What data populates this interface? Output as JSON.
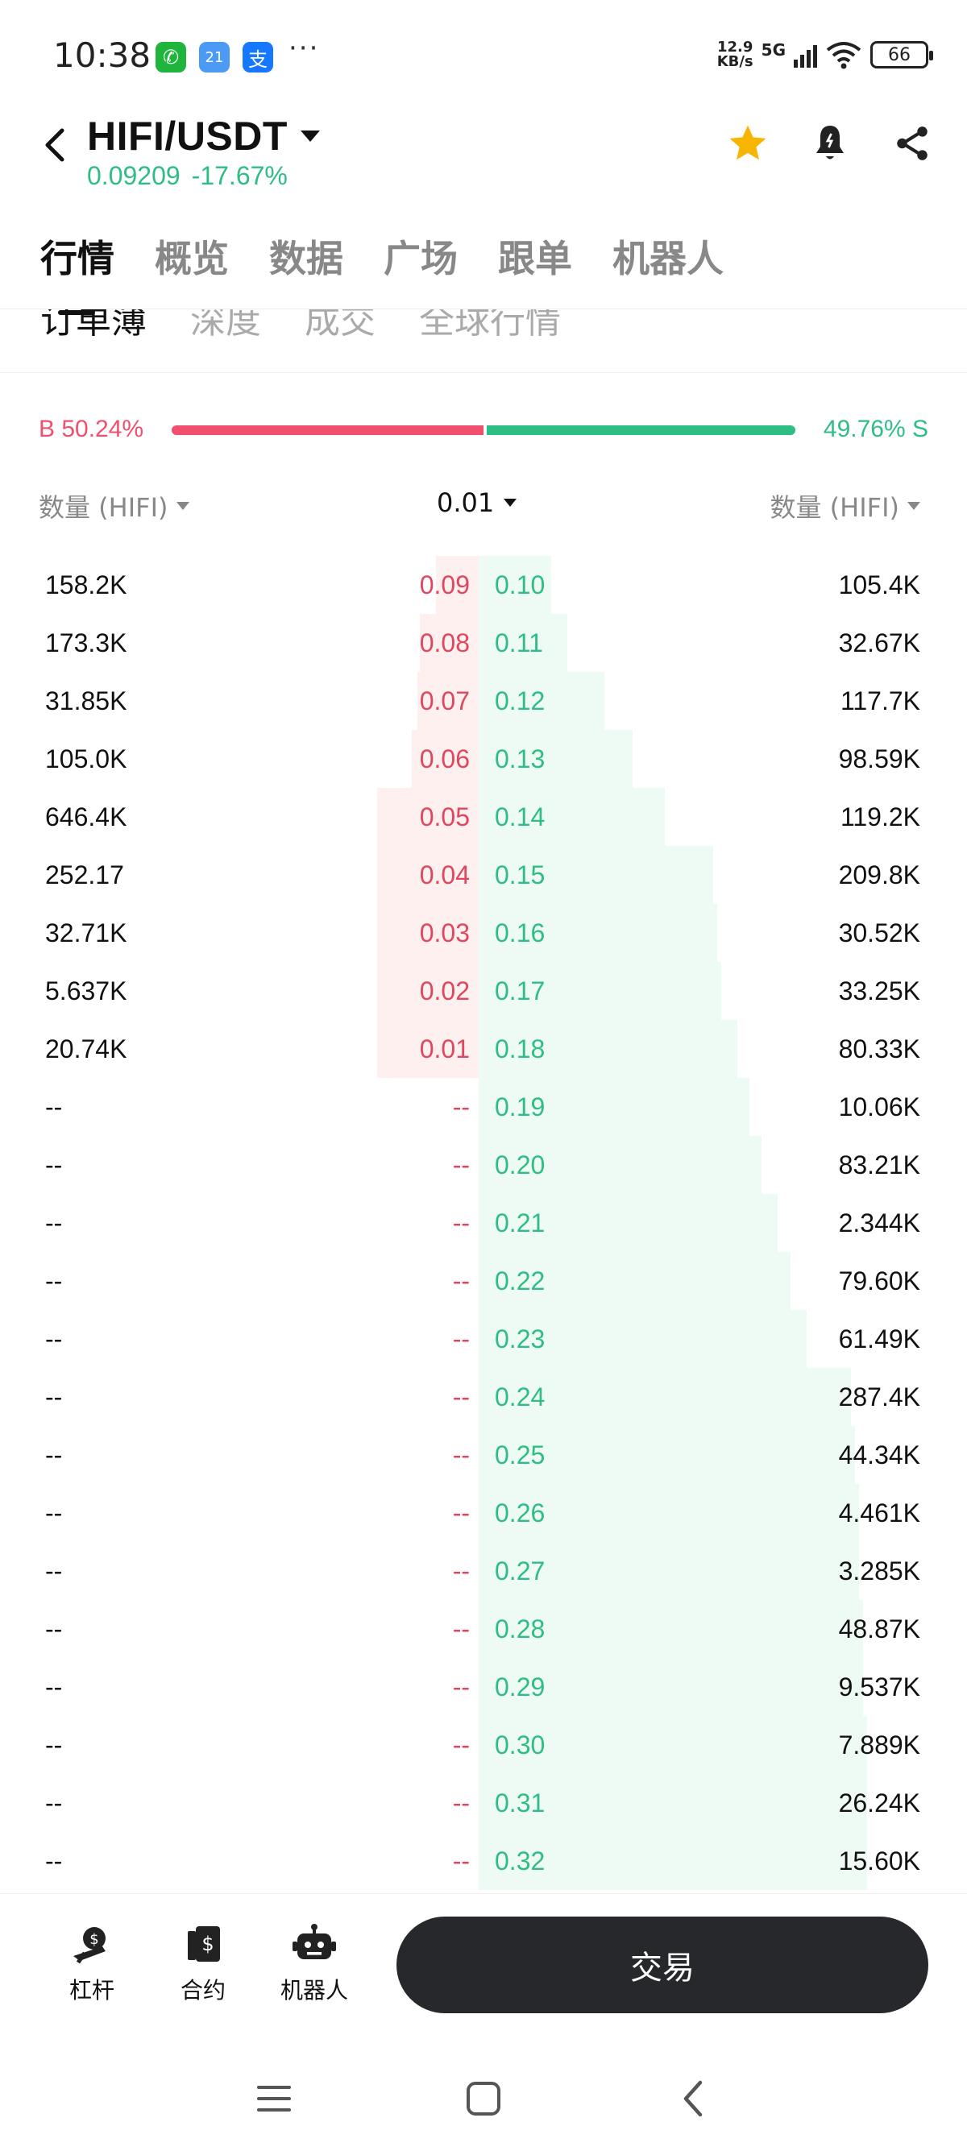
{
  "status_bar": {
    "time": "10:38",
    "net_speed_value": "12.9",
    "net_speed_unit": "KB/s",
    "network": "5G",
    "battery": "66",
    "apps": [
      {
        "icon": "wechat-icon",
        "glyph": "✆",
        "color": "#1fb53c"
      },
      {
        "icon": "weather-icon",
        "glyph": "21",
        "color": "#4b9bf5"
      },
      {
        "icon": "alipay-icon",
        "glyph": "支",
        "color": "#1677ff"
      }
    ],
    "more": "···"
  },
  "header": {
    "pair": "HIFI/USDT",
    "price": "0.09209",
    "change": "-17.67%"
  },
  "main_tabs": [
    "行情",
    "概览",
    "数据",
    "广场",
    "跟单",
    "机器人"
  ],
  "sub_tabs": [
    "订单薄",
    "深度",
    "成交",
    "全球行情"
  ],
  "ratio": {
    "buy_label": "B 50.24%",
    "sell_label": "49.76% S",
    "buy_fraction": 0.5024
  },
  "columns": {
    "left": "数量 (HIFI)",
    "precision": "0.01",
    "right": "数量 (HIFI)"
  },
  "orderbook": {
    "rows": [
      {
        "bid_qty": "158.2K",
        "bid_price": "0.09",
        "ask_price": "0.10",
        "ask_qty": "105.4K"
      },
      {
        "bid_qty": "173.3K",
        "bid_price": "0.08",
        "ask_price": "0.11",
        "ask_qty": "32.67K"
      },
      {
        "bid_qty": "31.85K",
        "bid_price": "0.07",
        "ask_price": "0.12",
        "ask_qty": "117.7K"
      },
      {
        "bid_qty": "105.0K",
        "bid_price": "0.06",
        "ask_price": "0.13",
        "ask_qty": "98.59K"
      },
      {
        "bid_qty": "646.4K",
        "bid_price": "0.05",
        "ask_price": "0.14",
        "ask_qty": "119.2K"
      },
      {
        "bid_qty": "252.17",
        "bid_price": "0.04",
        "ask_price": "0.15",
        "ask_qty": "209.8K"
      },
      {
        "bid_qty": "32.71K",
        "bid_price": "0.03",
        "ask_price": "0.16",
        "ask_qty": "30.52K"
      },
      {
        "bid_qty": "5.637K",
        "bid_price": "0.02",
        "ask_price": "0.17",
        "ask_qty": "33.25K"
      },
      {
        "bid_qty": "20.74K",
        "bid_price": "0.01",
        "ask_price": "0.18",
        "ask_qty": "80.33K"
      },
      {
        "bid_qty": "--",
        "bid_price": "--",
        "ask_price": "0.19",
        "ask_qty": "10.06K"
      },
      {
        "bid_qty": "--",
        "bid_price": "--",
        "ask_price": "0.20",
        "ask_qty": "83.21K"
      },
      {
        "bid_qty": "--",
        "bid_price": "--",
        "ask_price": "0.21",
        "ask_qty": "2.344K"
      },
      {
        "bid_qty": "--",
        "bid_price": "--",
        "ask_price": "0.22",
        "ask_qty": "79.60K"
      },
      {
        "bid_qty": "--",
        "bid_price": "--",
        "ask_price": "0.23",
        "ask_qty": "61.49K"
      },
      {
        "bid_qty": "--",
        "bid_price": "--",
        "ask_price": "0.24",
        "ask_qty": "287.4K"
      },
      {
        "bid_qty": "--",
        "bid_price": "--",
        "ask_price": "0.25",
        "ask_qty": "44.34K"
      },
      {
        "bid_qty": "--",
        "bid_price": "--",
        "ask_price": "0.26",
        "ask_qty": "4.461K"
      },
      {
        "bid_qty": "--",
        "bid_price": "--",
        "ask_price": "0.27",
        "ask_qty": "3.285K"
      },
      {
        "bid_qty": "--",
        "bid_price": "--",
        "ask_price": "0.28",
        "ask_qty": "48.87K"
      },
      {
        "bid_qty": "--",
        "bid_price": "--",
        "ask_price": "0.29",
        "ask_qty": "9.537K"
      },
      {
        "bid_qty": "--",
        "bid_price": "--",
        "ask_price": "0.30",
        "ask_qty": "7.889K"
      },
      {
        "bid_qty": "--",
        "bid_price": "--",
        "ask_price": "0.31",
        "ask_qty": "26.24K"
      },
      {
        "bid_qty": "--",
        "bid_price": "--",
        "ask_price": "0.32",
        "ask_qty": "15.60K"
      }
    ],
    "bid_depth": [
      0.21,
      0.29,
      0.3,
      0.33,
      0.5,
      0.5,
      0.5,
      0.5,
      0.5
    ],
    "ask_depth": [
      0.18,
      0.22,
      0.31,
      0.38,
      0.46,
      0.58,
      0.59,
      0.6,
      0.64,
      0.67,
      0.7,
      0.74,
      0.77,
      0.81,
      0.92,
      0.93,
      0.94,
      0.94,
      0.95,
      0.95,
      0.96,
      0.96,
      0.96
    ],
    "colors": {
      "bid": "#e0475f",
      "ask": "#2ebd85",
      "bid_depth": "#fff0f0",
      "ask_depth": "#eefaf4"
    }
  },
  "bottom_bar": {
    "items": [
      {
        "label": "杠杆",
        "icon": "leverage-icon"
      },
      {
        "label": "合约",
        "icon": "contract-icon"
      },
      {
        "label": "机器人",
        "icon": "robot-icon"
      }
    ],
    "trade": "交易"
  },
  "icons": {
    "back": "back-arrow-icon",
    "dropdown": "caret-down-icon",
    "favorite": "star-icon",
    "alert": "bell-icon",
    "share": "share-icon"
  },
  "accent_colors": {
    "up": "#2ebd85",
    "down": "#f0506e",
    "star": "#f7b500"
  }
}
